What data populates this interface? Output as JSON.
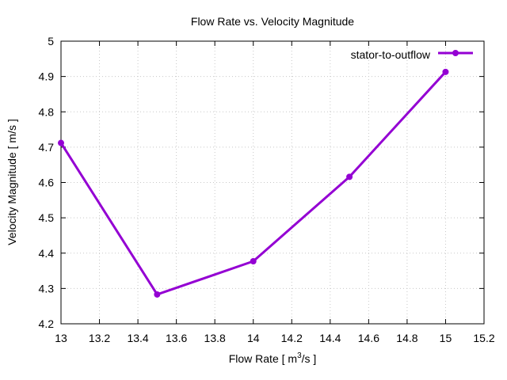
{
  "chart_data": {
    "type": "line",
    "title": "Flow Rate vs. Velocity Magnitude",
    "xlabel": "Flow Rate [ m",
    "xlabel_sup": "3",
    "xlabel_tail": "/s ]",
    "ylabel": "Velocity Magnitude [ m/s ]",
    "xlim": [
      13,
      15.2
    ],
    "ylim": [
      4.2,
      5.0
    ],
    "xticks": [
      13,
      13.2,
      13.4,
      13.6,
      13.8,
      14,
      14.2,
      14.4,
      14.6,
      14.8,
      15,
      15.2
    ],
    "xtick_labels": [
      "13",
      "13.2",
      "13.4",
      "13.6",
      "13.8",
      "14",
      "14.2",
      "14.4",
      "14.6",
      "14.8",
      "15",
      "15.2"
    ],
    "yticks": [
      4.2,
      4.3,
      4.4,
      4.5,
      4.6,
      4.7,
      4.8,
      4.9,
      5.0
    ],
    "ytick_labels": [
      "4.2",
      "4.3",
      "4.4",
      "4.5",
      "4.6",
      "4.7",
      "4.8",
      "4.9",
      "5"
    ],
    "grid": true,
    "legend_position": "top-right",
    "series": [
      {
        "name": "stator-to-outflow",
        "color": "#9400d3",
        "x": [
          13,
          13.5,
          14,
          14.5,
          15
        ],
        "y": [
          4.712,
          4.283,
          4.377,
          4.616,
          4.913
        ]
      }
    ]
  }
}
